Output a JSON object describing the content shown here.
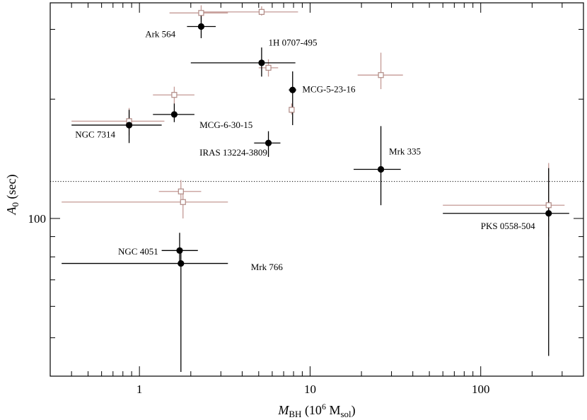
{
  "chart_data": {
    "type": "scatter",
    "title": "",
    "xlabel": {
      "main": "M",
      "sub": "BH",
      "units_pre": " (10",
      "units_sup": "6",
      "units_mid": " M",
      "units_sub": "sol",
      "units_post": ")"
    },
    "ylabel": {
      "main": "A",
      "sub": "0",
      "units": " (sec)"
    },
    "x_scale": "log",
    "y_scale": "log",
    "xlim": [
      0.3,
      400
    ],
    "ylim": [
      40,
      350
    ],
    "x_tick_labels": [
      {
        "value": 1,
        "label": "1"
      },
      {
        "value": 10,
        "label": "10"
      },
      {
        "value": 100,
        "label": "100"
      }
    ],
    "y_tick_labels": [
      {
        "value": 100,
        "label": "100"
      }
    ],
    "reference_line": {
      "y": 124,
      "style": "dotted"
    },
    "colors": {
      "filled": "#000000",
      "open": "#b08a85",
      "error_open": "#c49a95"
    },
    "series": [
      {
        "marker": "filled-circle",
        "points": [
          {
            "label": "Ark 564",
            "x": 2.3,
            "y": 305,
            "xerr": [
              1.9,
              2.8
            ],
            "yerr": [
              285,
              325
            ]
          },
          {
            "label": "1H 0707-495",
            "x": 5.2,
            "y": 247,
            "xerr": [
              2.0,
              8.2
            ],
            "yerr": [
              228,
              270
            ]
          },
          {
            "label": "MCG-5-23-16",
            "x": 7.9,
            "y": 211,
            "xerr": [
              7.5,
              8.3
            ],
            "yerr": [
              172,
              235
            ]
          },
          {
            "label": "MCG-6-30-15",
            "x": 1.6,
            "y": 183,
            "xerr": [
              1.2,
              2.1
            ],
            "yerr": [
              175,
              195
            ]
          },
          {
            "label": "NGC 7314",
            "x": 0.87,
            "y": 172,
            "xerr": [
              0.4,
              1.35
            ],
            "yerr": [
              155,
              188
            ]
          },
          {
            "label": "IRAS 13224-3809",
            "x": 5.7,
            "y": 155,
            "xerr": [
              4.7,
              6.7
            ],
            "yerr": [
              143,
              166
            ]
          },
          {
            "label": "Mrk 335",
            "x": 26,
            "y": 133,
            "xerr": [
              18,
              34
            ],
            "yerr": [
              108,
              171
            ]
          },
          {
            "label": "PKS 0558-504",
            "x": 250,
            "y": 103,
            "xerr": [
              60,
              330
            ],
            "yerr": [
              45,
              134
            ]
          },
          {
            "label": "NGC 4051",
            "x": 1.72,
            "y": 83,
            "xerr": [
              1.35,
              2.2
            ],
            "yerr": [
              76,
              92
            ]
          },
          {
            "label": "Mrk 766",
            "x": 1.75,
            "y": 77,
            "xerr": [
              0.35,
              3.3
            ],
            "yerr": [
              41,
              83
            ]
          }
        ]
      },
      {
        "marker": "open-square",
        "points": [
          {
            "x": 2.3,
            "y": 330,
            "xerr": [
              1.5,
              3.3
            ],
            "yerr": [
              318,
              345
            ]
          },
          {
            "x": 5.2,
            "y": 332,
            "xerr": [
              2.3,
              8.5
            ],
            "yerr": [
              325,
              343
            ]
          },
          {
            "x": 5.7,
            "y": 240,
            "xerr": [
              5.0,
              6.5
            ],
            "yerr": [
              228,
              252
            ]
          },
          {
            "x": 26,
            "y": 230,
            "xerr": [
              19,
              35
            ],
            "yerr": [
              212,
              262
            ]
          },
          {
            "x": 1.6,
            "y": 205,
            "xerr": [
              1.2,
              2.1
            ],
            "yerr": [
              195,
              215
            ]
          },
          {
            "x": 7.8,
            "y": 188,
            "xerr": [
              7.5,
              8.1
            ],
            "yerr": [
              183,
              195
            ]
          },
          {
            "x": 0.87,
            "y": 176,
            "xerr": [
              0.4,
              1.4
            ],
            "yerr": [
              162,
              190
            ]
          },
          {
            "x": 1.75,
            "y": 117,
            "xerr": [
              1.3,
              2.3
            ],
            "yerr": [
              112,
              125
            ]
          },
          {
            "x": 1.8,
            "y": 110,
            "xerr": [
              0.35,
              3.3
            ],
            "yerr": [
              100,
              117
            ]
          },
          {
            "x": 250,
            "y": 108,
            "xerr": [
              60,
              310
            ],
            "yerr": [
              90,
              138
            ]
          }
        ]
      }
    ],
    "annotations": [
      {
        "text": "Ark 564",
        "x": 1.08,
        "y": 287,
        "anchor": "start"
      },
      {
        "text": "1H 0707-495",
        "x": 5.7,
        "y": 273,
        "anchor": "start"
      },
      {
        "text": "MCG-5-23-16",
        "x": 9.0,
        "y": 208,
        "anchor": "start"
      },
      {
        "text": "MCG-6-30-15",
        "x": 2.25,
        "y": 169,
        "anchor": "start"
      },
      {
        "text": "NGC 7314",
        "x": 0.42,
        "y": 160,
        "anchor": "start"
      },
      {
        "text": "IRAS 13224-3809",
        "x": 2.25,
        "y": 144,
        "anchor": "start"
      },
      {
        "text": "Mrk 335",
        "x": 29,
        "y": 145,
        "anchor": "start"
      },
      {
        "text": "PKS 0558-504",
        "x": 100,
        "y": 94,
        "anchor": "start"
      },
      {
        "text": "NGC 4051",
        "x": 0.75,
        "y": 81,
        "anchor": "start"
      },
      {
        "text": "Mrk 766",
        "x": 4.5,
        "y": 74,
        "anchor": "start"
      }
    ]
  }
}
